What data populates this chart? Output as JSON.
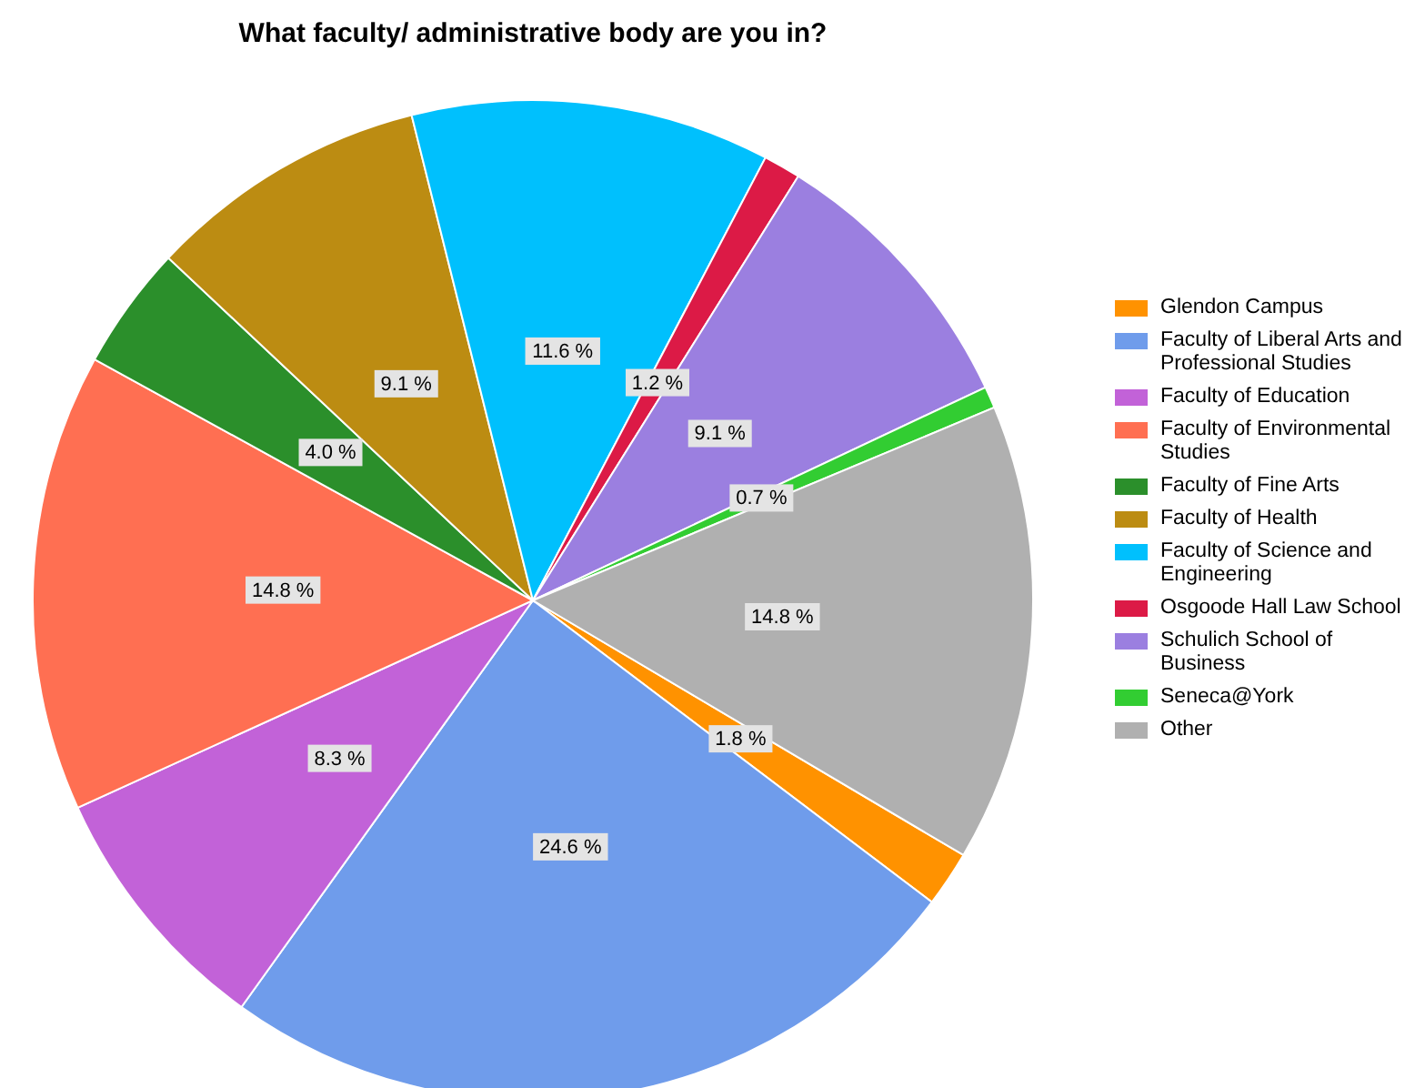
{
  "chart_data": {
    "type": "pie",
    "title": "What faculty/ administrative body are you in?",
    "categories": [
      "Glendon Campus",
      "Faculty of Liberal Arts and Professional Studies",
      "Faculty of Education",
      "Faculty of Environmental Studies",
      "Faculty of Fine Arts",
      "Faculty of Health",
      "Faculty of Science and Engineering",
      "Osgoode Hall Law School",
      "Schulich School of Business",
      "Seneca@York",
      "Other"
    ],
    "values": [
      1.8,
      24.6,
      8.3,
      14.8,
      4.0,
      9.1,
      11.6,
      1.2,
      9.1,
      0.7,
      14.8
    ],
    "value_labels": [
      "1.8 %",
      "24.6 %",
      "8.3 %",
      "14.8 %",
      "4.0 %",
      "9.1 %",
      "11.6 %",
      "1.2 %",
      "9.1 %",
      "0.7 %",
      "14.8 %"
    ],
    "colors": [
      "#ff9200",
      "#6f9ceb",
      "#c262d8",
      "#ff6f52",
      "#2b8f2b",
      "#bc8c12",
      "#00c0fd",
      "#dc1a46",
      "#9b7fe0",
      "#32cd32",
      "#b0b0b0"
    ],
    "legend": "right"
  }
}
